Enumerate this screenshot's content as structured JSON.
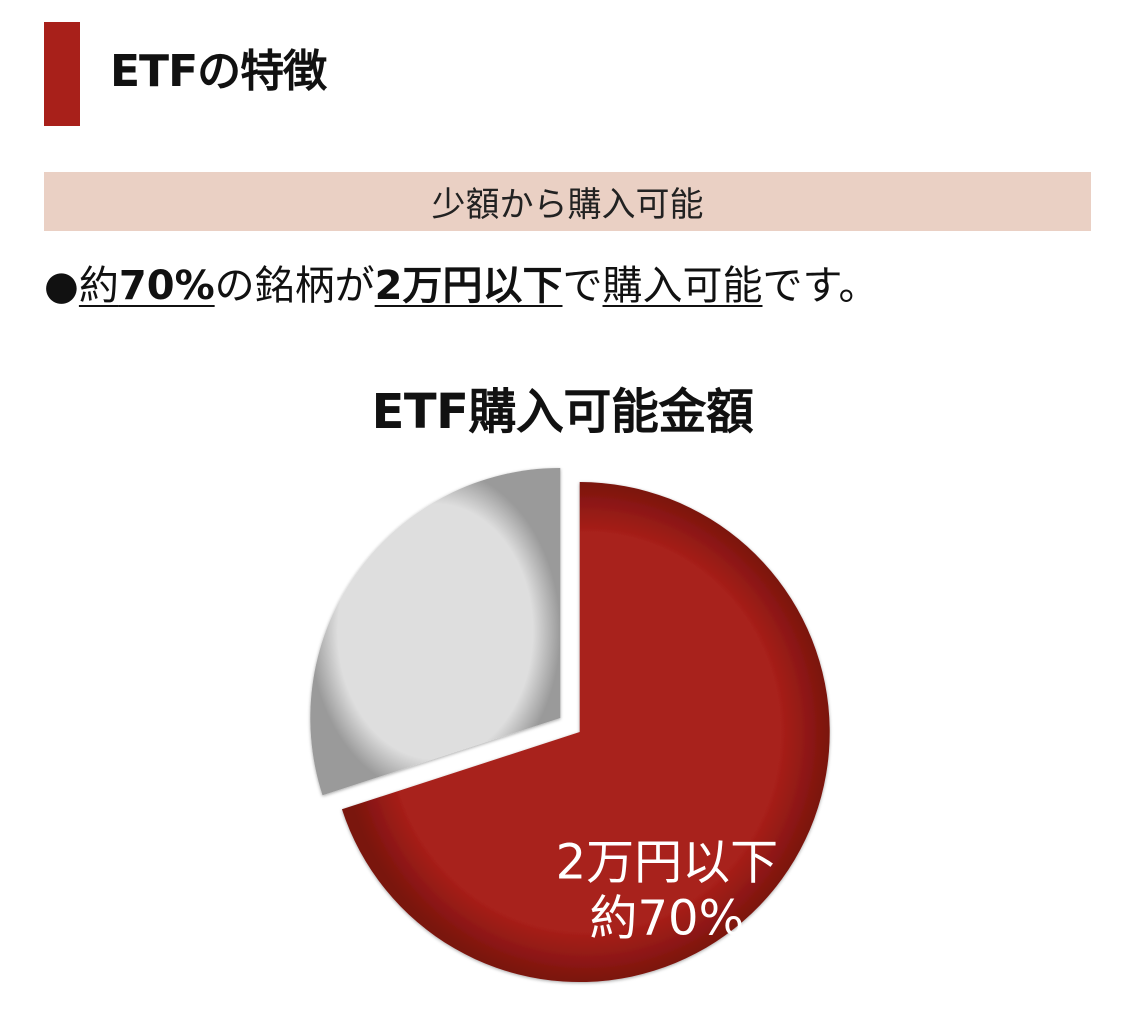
{
  "page": {
    "title": "ETFの特徴",
    "section_band": "少額から購入可能",
    "statement": {
      "bullet": "●",
      "parts": [
        "約",
        "70%",
        "の銘柄が",
        "2万円以下",
        "で",
        "購入可能",
        "です。"
      ]
    }
  },
  "colors": {
    "accent": "#a8201a",
    "band": "#ead0c4",
    "pie_main": "#a8201a",
    "pie_other": "#dcdcdc"
  },
  "chart_data": {
    "type": "pie",
    "title": "ETF購入可能金額",
    "slices": [
      {
        "label_line1": "2万円以下",
        "label_line2": "約70%",
        "value": 70,
        "color": "#a8201a"
      },
      {
        "label_line1": "",
        "label_line2": "",
        "value": 30,
        "color": "#dcdcdc"
      }
    ]
  }
}
